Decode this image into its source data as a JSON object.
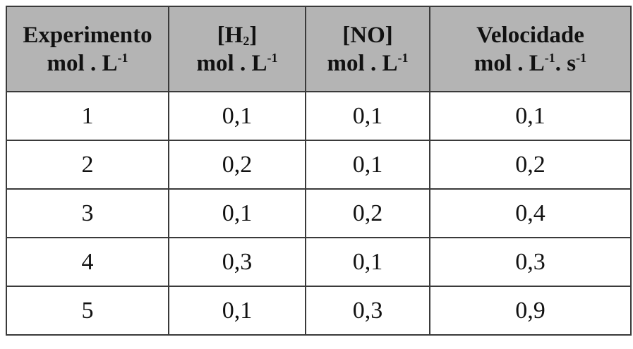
{
  "table": {
    "header": [
      {
        "line1": [
          "Experimento"
        ],
        "line2": [
          "mol . L",
          "-1"
        ]
      },
      {
        "line1": [
          "[H",
          "2",
          "]"
        ],
        "line2": [
          "mol . L",
          "-1"
        ]
      },
      {
        "line1": [
          "[NO]"
        ],
        "line2": [
          "mol . L",
          "-1"
        ]
      },
      {
        "line1": [
          "Velocidade"
        ],
        "line2": [
          "mol . L",
          "-1",
          ". s",
          "-1"
        ]
      }
    ],
    "rows": [
      [
        "1",
        "0,1",
        "0,1",
        "0,1"
      ],
      [
        "2",
        "0,2",
        "0,1",
        "0,2"
      ],
      [
        "3",
        "0,1",
        "0,2",
        "0,4"
      ],
      [
        "4",
        "0,3",
        "0,1",
        "0,3"
      ],
      [
        "5",
        "0,1",
        "0,3",
        "0,9"
      ]
    ]
  }
}
